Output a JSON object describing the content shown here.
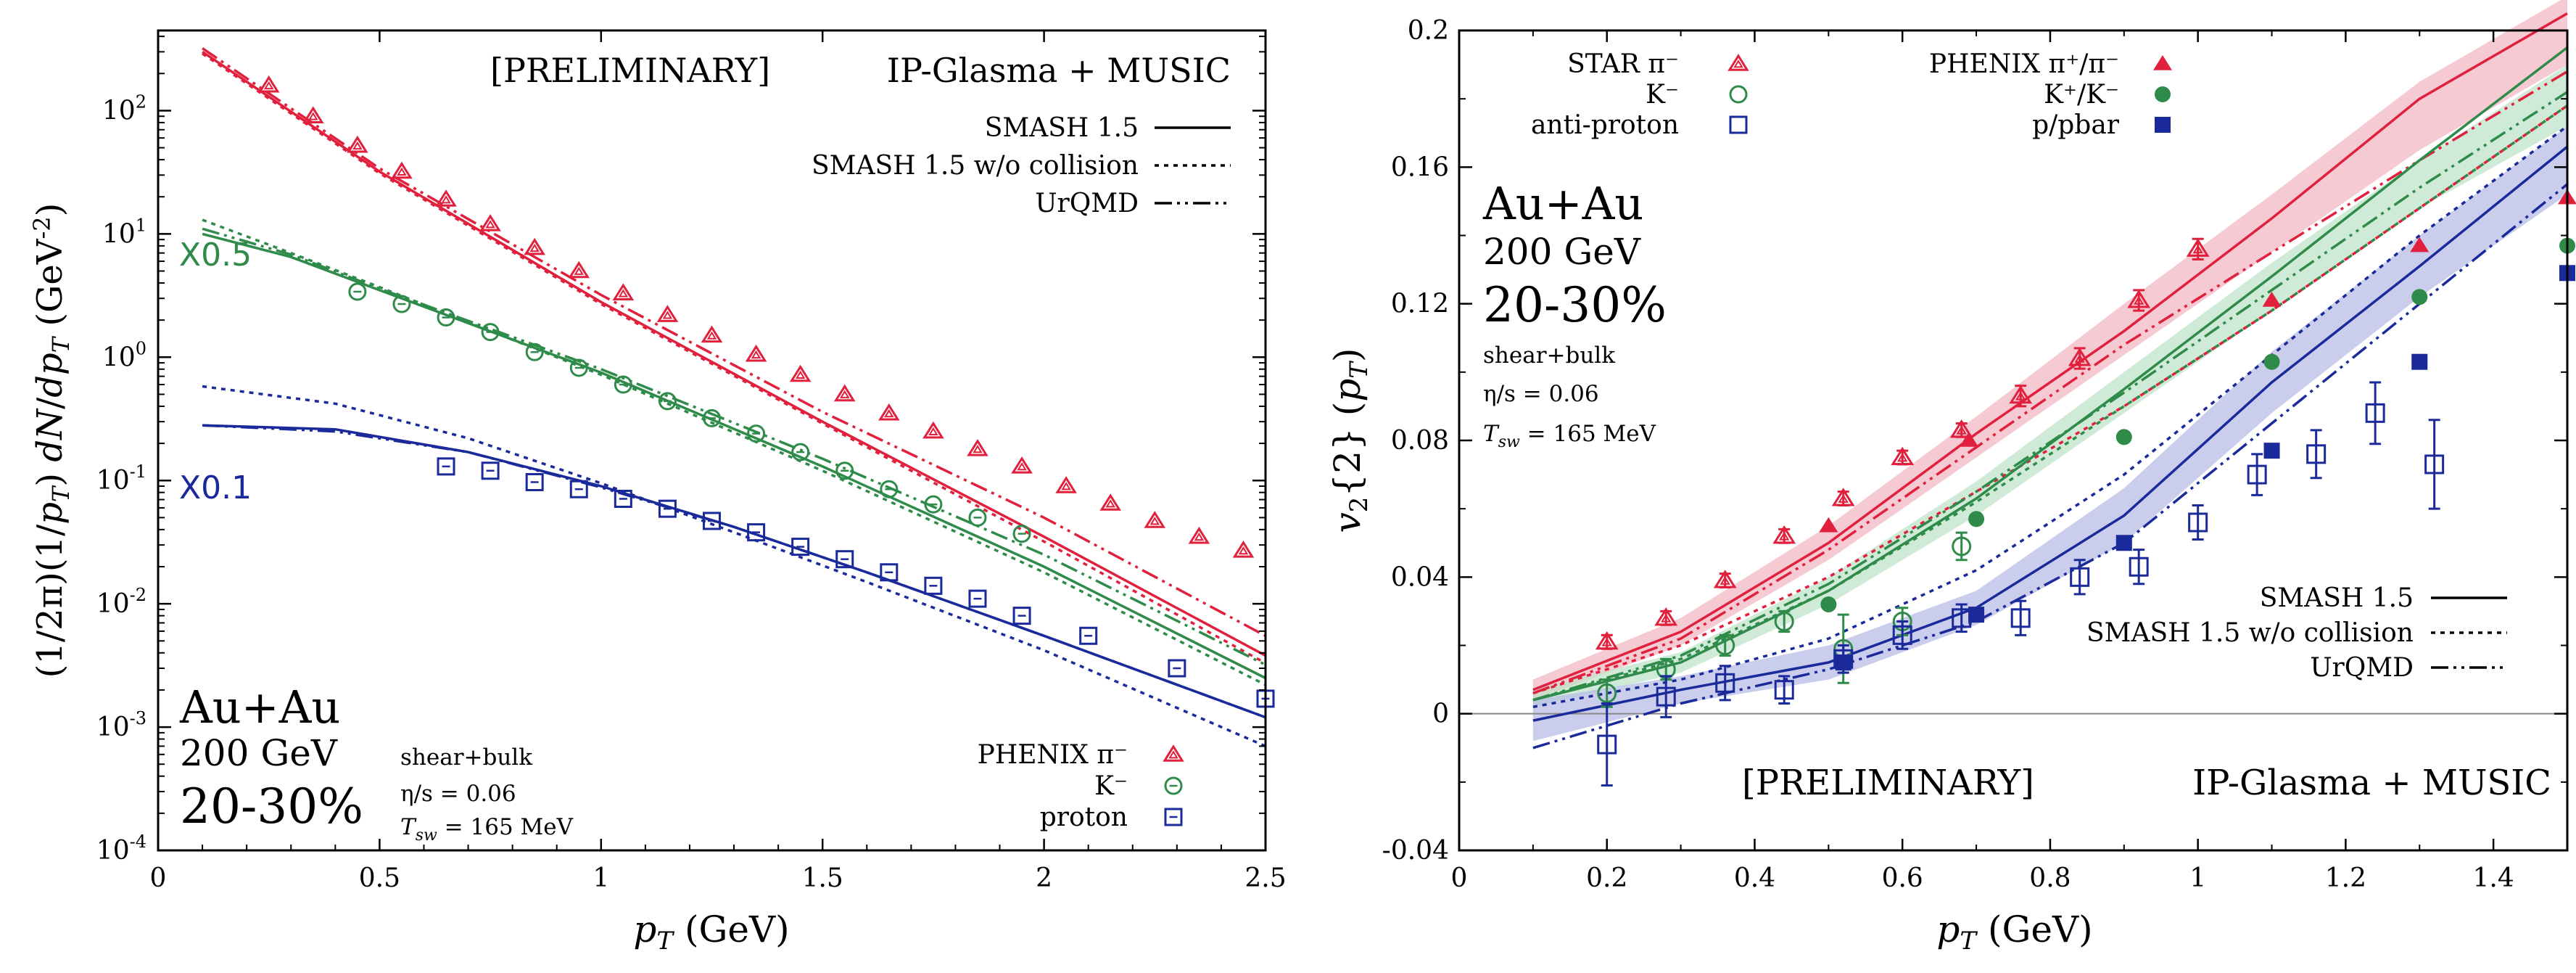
{
  "colors": {
    "pi": "#e0203c",
    "k": "#2e8b4a",
    "p": "#1a2a9a",
    "band_pi": "#f2b8c4",
    "band_k": "#bfe3c8",
    "band_p": "#b8bce6"
  },
  "chart_data": [
    {
      "type": "line",
      "title": "",
      "annotation_top": "[PRELIMINARY]",
      "annotation_model": "IP-Glasma + MUSIC",
      "xlabel": "p_T (GeV)",
      "ylabel": "(1/2π)(1/p_T) dN/dp_T (GeV^-2)",
      "xlim": [
        0,
        2.5
      ],
      "ylim_log10": [
        -4,
        2.65
      ],
      "xticks": [
        "0",
        "0.5",
        "1",
        "1.5",
        "2",
        "2.5"
      ],
      "yticks": [
        {
          "base": "10",
          "exp": "-4"
        },
        {
          "base": "10",
          "exp": "-3"
        },
        {
          "base": "10",
          "exp": "-2"
        },
        {
          "base": "10",
          "exp": "-1"
        },
        {
          "base": "10",
          "exp": "0"
        },
        {
          "base": "10",
          "exp": "1"
        },
        {
          "base": "10",
          "exp": "2"
        }
      ],
      "scale_labels": {
        "kaon": "X0.5",
        "proton": "X0.1"
      },
      "system": {
        "name": "Au+Au",
        "energy": "200 GeV",
        "centrality": "20-30%",
        "visc": "shear+bulk",
        "etas": "η/s = 0.06",
        "tsw": "T_sw = 165 MeV"
      },
      "legend_models": [
        "SMASH 1.5",
        "SMASH 1.5 w/o collision",
        "UrQMD"
      ],
      "legend_data": [
        {
          "label": "PHENIX  π⁻",
          "species": "pi"
        },
        {
          "label": "K⁻",
          "species": "k"
        },
        {
          "label": "proton",
          "species": "p"
        }
      ],
      "series": [
        {
          "species": "pi",
          "style": "solid",
          "x": [
            0.1,
            0.5,
            1.0,
            1.5,
            2.0,
            2.5
          ],
          "y": [
            300,
            32,
            2.8,
            0.3,
            0.035,
            0.0038
          ]
        },
        {
          "species": "pi",
          "style": "dashed",
          "x": [
            0.1,
            0.5,
            1.0,
            1.5,
            2.0,
            2.5
          ],
          "y": [
            290,
            31,
            2.7,
            0.29,
            0.032,
            0.0033
          ]
        },
        {
          "species": "pi",
          "style": "dashdot",
          "x": [
            0.1,
            0.5,
            1.0,
            1.5,
            2.0,
            2.5
          ],
          "y": [
            320,
            34,
            3.2,
            0.36,
            0.05,
            0.0055
          ]
        },
        {
          "species": "k",
          "style": "solid",
          "x": [
            0.1,
            0.3,
            0.5,
            1.0,
            1.5,
            2.0,
            2.5
          ],
          "y": [
            10,
            6.5,
            3.5,
            0.75,
            0.13,
            0.02,
            0.0025
          ]
        },
        {
          "species": "k",
          "style": "dashed",
          "x": [
            0.1,
            0.3,
            0.5,
            1.0,
            1.5,
            2.0,
            2.5
          ],
          "y": [
            13,
            7.0,
            3.7,
            0.72,
            0.12,
            0.018,
            0.0022
          ]
        },
        {
          "species": "k",
          "style": "dashdot",
          "x": [
            0.1,
            0.3,
            0.5,
            1.0,
            1.5,
            2.0,
            2.5
          ],
          "y": [
            11,
            6.8,
            3.6,
            0.8,
            0.15,
            0.025,
            0.0032
          ]
        },
        {
          "species": "p",
          "style": "solid",
          "x": [
            0.1,
            0.4,
            0.7,
            1.0,
            1.3,
            1.6,
            2.0,
            2.5
          ],
          "y": [
            0.28,
            0.26,
            0.17,
            0.09,
            0.042,
            0.018,
            0.0055,
            0.0012
          ]
        },
        {
          "species": "p",
          "style": "dashed",
          "x": [
            0.1,
            0.4,
            0.7,
            1.0,
            1.3,
            1.6,
            2.0,
            2.5
          ],
          "y": [
            0.58,
            0.42,
            0.22,
            0.095,
            0.038,
            0.015,
            0.0042,
            0.0007
          ]
        },
        {
          "species": "p",
          "style": "dashdot",
          "x": [
            0.1,
            0.4,
            0.7,
            1.0,
            1.3,
            1.6,
            2.0,
            2.5
          ],
          "y": [
            0.28,
            0.25,
            0.17,
            0.088,
            0.042,
            0.018,
            0.0055,
            0.0012
          ]
        }
      ],
      "points": [
        {
          "species": "pi",
          "x": [
            0.25,
            0.35,
            0.45,
            0.55,
            0.65,
            0.75,
            0.85,
            0.95,
            1.05,
            1.15,
            1.25,
            1.35,
            1.45,
            1.55,
            1.65,
            1.75,
            1.85,
            1.95,
            2.05,
            2.15,
            2.25,
            2.35,
            2.45
          ],
          "y": [
            160,
            90,
            52,
            32,
            19,
            12,
            7.7,
            5.0,
            3.3,
            2.2,
            1.5,
            1.05,
            0.72,
            0.5,
            0.35,
            0.25,
            0.18,
            0.13,
            0.09,
            0.065,
            0.047,
            0.035,
            0.027
          ]
        },
        {
          "species": "k",
          "x": [
            0.45,
            0.55,
            0.65,
            0.75,
            0.85,
            0.95,
            1.05,
            1.15,
            1.25,
            1.35,
            1.45,
            1.55,
            1.65,
            1.75,
            1.85,
            1.95
          ],
          "y": [
            3.4,
            2.7,
            2.1,
            1.6,
            1.1,
            0.82,
            0.6,
            0.44,
            0.32,
            0.24,
            0.17,
            0.12,
            0.085,
            0.064,
            0.05,
            0.037
          ]
        },
        {
          "species": "p",
          "x": [
            0.65,
            0.75,
            0.85,
            0.95,
            1.05,
            1.15,
            1.25,
            1.35,
            1.45,
            1.55,
            1.65,
            1.75,
            1.85,
            1.95,
            2.1,
            2.3,
            2.5
          ],
          "y": [
            0.13,
            0.12,
            0.097,
            0.085,
            0.071,
            0.059,
            0.047,
            0.038,
            0.029,
            0.023,
            0.018,
            0.014,
            0.011,
            0.008,
            0.0055,
            0.003,
            0.0017
          ]
        }
      ]
    },
    {
      "type": "line",
      "title": "",
      "annotation_top": "[PRELIMINARY]",
      "annotation_model": "IP-Glasma + MUSIC",
      "xlabel": "p_T (GeV)",
      "ylabel": "v_2{2} (p_T)",
      "xlim": [
        0,
        1.5
      ],
      "ylim": [
        -0.04,
        0.2
      ],
      "xticks": [
        "0",
        "0.2",
        "0.4",
        "0.6",
        "0.8",
        "1",
        "1.2",
        "1.4"
      ],
      "yticks": [
        "-0.04",
        "0",
        "0.04",
        "0.08",
        "0.12",
        "0.16",
        "0.2"
      ],
      "system": {
        "name": "Au+Au",
        "energy": "200 GeV",
        "centrality": "20-30%",
        "visc": "shear+bulk",
        "etas": "η/s = 0.06",
        "tsw": "T_sw = 165 MeV"
      },
      "legend_star": [
        {
          "label": "STAR  π⁻",
          "species": "pi"
        },
        {
          "label": "K⁻",
          "species": "k"
        },
        {
          "label": "anti-proton",
          "species": "p"
        }
      ],
      "legend_phenix": [
        {
          "label": "PHENIX  π⁺/π⁻",
          "species": "pi"
        },
        {
          "label": "K⁺/K⁻",
          "species": "k"
        },
        {
          "label": "p/pbar",
          "species": "p"
        }
      ],
      "legend_models": [
        "SMASH 1.5",
        "SMASH 1.5 w/o collision",
        "UrQMD"
      ],
      "bands": [
        {
          "species": "pi",
          "x": [
            0.1,
            0.3,
            0.5,
            0.7,
            0.9,
            1.1,
            1.3,
            1.5
          ],
          "lo": [
            0.004,
            0.02,
            0.045,
            0.075,
            0.105,
            0.135,
            0.165,
            0.19
          ],
          "hi": [
            0.01,
            0.028,
            0.055,
            0.087,
            0.12,
            0.152,
            0.185,
            0.21
          ]
        },
        {
          "species": "k",
          "x": [
            0.1,
            0.3,
            0.5,
            0.7,
            0.9,
            1.1,
            1.3,
            1.5
          ],
          "lo": [
            0.002,
            0.012,
            0.032,
            0.058,
            0.088,
            0.118,
            0.148,
            0.172
          ],
          "hi": [
            0.007,
            0.018,
            0.04,
            0.068,
            0.1,
            0.132,
            0.162,
            0.19
          ]
        },
        {
          "species": "p",
          "x": [
            0.1,
            0.3,
            0.5,
            0.7,
            0.9,
            1.1,
            1.3,
            1.5
          ],
          "lo": [
            -0.008,
            0.003,
            0.01,
            0.026,
            0.05,
            0.088,
            0.122,
            0.152
          ],
          "hi": [
            0.004,
            0.011,
            0.02,
            0.036,
            0.066,
            0.106,
            0.14,
            0.172
          ]
        }
      ],
      "series": [
        {
          "species": "pi",
          "style": "solid",
          "x": [
            0.1,
            0.3,
            0.5,
            0.7,
            0.9,
            1.1,
            1.3,
            1.5
          ],
          "y": [
            0.007,
            0.024,
            0.05,
            0.082,
            0.112,
            0.145,
            0.18,
            0.205
          ]
        },
        {
          "species": "pi",
          "style": "dashed",
          "x": [
            0.1,
            0.3,
            0.5,
            0.7,
            0.9,
            1.1,
            1.3,
            1.5
          ],
          "y": [
            0.006,
            0.02,
            0.04,
            0.065,
            0.09,
            0.118,
            0.148,
            0.178
          ]
        },
        {
          "species": "pi",
          "style": "dashdot",
          "x": [
            0.1,
            0.3,
            0.5,
            0.7,
            0.9,
            1.1,
            1.3,
            1.5
          ],
          "y": [
            0.006,
            0.022,
            0.048,
            0.078,
            0.108,
            0.135,
            0.162,
            0.188
          ]
        },
        {
          "species": "k",
          "style": "solid",
          "x": [
            0.1,
            0.3,
            0.5,
            0.7,
            0.9,
            1.1,
            1.3,
            1.5
          ],
          "y": [
            0.004,
            0.015,
            0.036,
            0.063,
            0.095,
            0.128,
            0.162,
            0.195
          ]
        },
        {
          "species": "k",
          "style": "dashed",
          "x": [
            0.1,
            0.3,
            0.5,
            0.7,
            0.9,
            1.1,
            1.3,
            1.5
          ],
          "y": [
            0.004,
            0.016,
            0.036,
            0.062,
            0.09,
            0.118,
            0.148,
            0.178
          ]
        },
        {
          "species": "k",
          "style": "dashdot",
          "x": [
            0.1,
            0.3,
            0.5,
            0.7,
            0.9,
            1.1,
            1.3,
            1.5
          ],
          "y": [
            0.004,
            0.017,
            0.038,
            0.065,
            0.094,
            0.124,
            0.154,
            0.182
          ]
        },
        {
          "species": "p",
          "style": "solid",
          "x": [
            0.1,
            0.3,
            0.5,
            0.7,
            0.9,
            1.1,
            1.3,
            1.5
          ],
          "y": [
            -0.002,
            0.007,
            0.015,
            0.031,
            0.058,
            0.097,
            0.131,
            0.166
          ]
        },
        {
          "species": "p",
          "style": "dashed",
          "x": [
            0.1,
            0.3,
            0.5,
            0.7,
            0.9,
            1.1,
            1.3,
            1.5
          ],
          "y": [
            0.002,
            0.01,
            0.022,
            0.042,
            0.07,
            0.105,
            0.14,
            0.172
          ]
        },
        {
          "species": "p",
          "style": "dashdot",
          "x": [
            0.1,
            0.3,
            0.5,
            0.7,
            0.9,
            1.1,
            1.3,
            1.5
          ],
          "y": [
            -0.01,
            0.003,
            0.013,
            0.027,
            0.05,
            0.085,
            0.12,
            0.155
          ]
        }
      ],
      "star_points": [
        {
          "species": "pi",
          "x": [
            0.2,
            0.28,
            0.36,
            0.44,
            0.52,
            0.6,
            0.68,
            0.76,
            0.84,
            0.92,
            1.0
          ],
          "y": [
            0.021,
            0.028,
            0.039,
            0.052,
            0.063,
            0.075,
            0.083,
            0.093,
            0.104,
            0.121,
            0.136
          ],
          "err": [
            0.002,
            0.002,
            0.002,
            0.002,
            0.002,
            0.002,
            0.002,
            0.003,
            0.003,
            0.003,
            0.003
          ]
        },
        {
          "species": "k",
          "x": [
            0.2,
            0.28,
            0.36,
            0.44,
            0.52,
            0.6,
            0.68
          ],
          "y": [
            0.006,
            0.013,
            0.02,
            0.027,
            0.019,
            0.027,
            0.049
          ],
          "err": [
            0.004,
            0.003,
            0.003,
            0.003,
            0.01,
            0.004,
            0.004
          ]
        },
        {
          "species": "p",
          "x": [
            0.2,
            0.28,
            0.36,
            0.44,
            0.52,
            0.6,
            0.68,
            0.76,
            0.84,
            0.92,
            1.0,
            1.08,
            1.16,
            1.24,
            1.32
          ],
          "y": [
            -0.009,
            0.005,
            0.009,
            0.007,
            0.016,
            0.023,
            0.028,
            0.028,
            0.04,
            0.043,
            0.056,
            0.07,
            0.076,
            0.088,
            0.073
          ],
          "err": [
            0.012,
            0.006,
            0.005,
            0.004,
            0.004,
            0.004,
            0.004,
            0.005,
            0.005,
            0.005,
            0.005,
            0.006,
            0.007,
            0.009,
            0.013
          ]
        }
      ],
      "phenix_points": [
        {
          "species": "pi",
          "x": [
            0.5,
            0.69,
            1.1,
            1.3,
            1.5
          ],
          "y": [
            0.055,
            0.08,
            0.121,
            0.137,
            0.151
          ]
        },
        {
          "species": "k",
          "x": [
            0.5,
            0.7,
            0.9,
            1.1,
            1.3,
            1.5
          ],
          "y": [
            0.032,
            0.057,
            0.081,
            0.103,
            0.122,
            0.137
          ]
        },
        {
          "species": "p",
          "x": [
            0.52,
            0.7,
            0.9,
            1.1,
            1.3,
            1.5
          ],
          "y": [
            0.015,
            0.029,
            0.05,
            0.077,
            0.103,
            0.129
          ]
        }
      ]
    }
  ]
}
